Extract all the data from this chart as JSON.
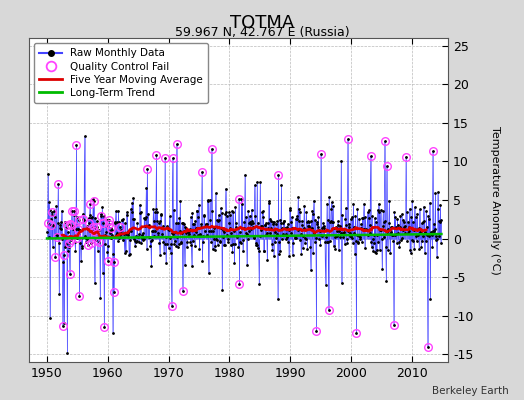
{
  "title": "TOTMA",
  "subtitle": "59.967 N, 42.767 E (Russia)",
  "credit": "Berkeley Earth",
  "ylabel": "Temperature Anomaly (°C)",
  "xlim": [
    1947,
    2016
  ],
  "ylim": [
    -16,
    26
  ],
  "yticks": [
    -15,
    -10,
    -5,
    0,
    5,
    10,
    15,
    20,
    25
  ],
  "xticks": [
    1950,
    1960,
    1970,
    1980,
    1990,
    2000,
    2010
  ],
  "bg_color": "#d8d8d8",
  "plot_bg_color": "#ffffff",
  "grid_color": "#bbbbbb",
  "raw_line_color": "#4444ff",
  "qc_color": "#ff44ff",
  "moving_avg_color": "#dd0000",
  "trend_color": "#00bb00",
  "seed": 12345,
  "n_years": 65,
  "start_year": 1950
}
